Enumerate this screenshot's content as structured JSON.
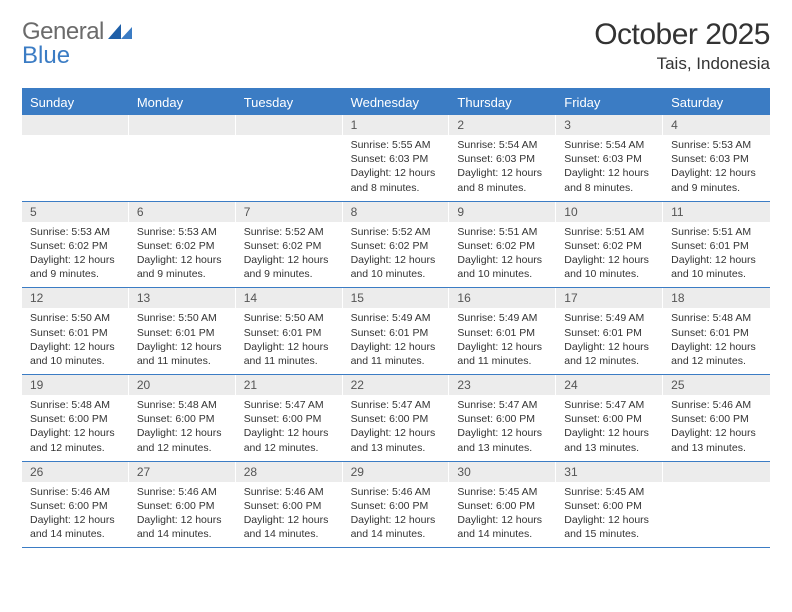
{
  "logo": {
    "part1": "General",
    "part2": "Blue"
  },
  "title": "October 2025",
  "location": "Tais, Indonesia",
  "colors": {
    "accent": "#3b7cc4",
    "daynum_bg": "#ececec",
    "text": "#333333",
    "logo_gray": "#6b6b6b"
  },
  "weekdays": [
    "Sunday",
    "Monday",
    "Tuesday",
    "Wednesday",
    "Thursday",
    "Friday",
    "Saturday"
  ],
  "weeks": [
    [
      {
        "empty": true
      },
      {
        "empty": true
      },
      {
        "empty": true
      },
      {
        "num": "1",
        "sunrise": "Sunrise: 5:55 AM",
        "sunset": "Sunset: 6:03 PM",
        "daylight": "Daylight: 12 hours and 8 minutes."
      },
      {
        "num": "2",
        "sunrise": "Sunrise: 5:54 AM",
        "sunset": "Sunset: 6:03 PM",
        "daylight": "Daylight: 12 hours and 8 minutes."
      },
      {
        "num": "3",
        "sunrise": "Sunrise: 5:54 AM",
        "sunset": "Sunset: 6:03 PM",
        "daylight": "Daylight: 12 hours and 8 minutes."
      },
      {
        "num": "4",
        "sunrise": "Sunrise: 5:53 AM",
        "sunset": "Sunset: 6:03 PM",
        "daylight": "Daylight: 12 hours and 9 minutes."
      }
    ],
    [
      {
        "num": "5",
        "sunrise": "Sunrise: 5:53 AM",
        "sunset": "Sunset: 6:02 PM",
        "daylight": "Daylight: 12 hours and 9 minutes."
      },
      {
        "num": "6",
        "sunrise": "Sunrise: 5:53 AM",
        "sunset": "Sunset: 6:02 PM",
        "daylight": "Daylight: 12 hours and 9 minutes."
      },
      {
        "num": "7",
        "sunrise": "Sunrise: 5:52 AM",
        "sunset": "Sunset: 6:02 PM",
        "daylight": "Daylight: 12 hours and 9 minutes."
      },
      {
        "num": "8",
        "sunrise": "Sunrise: 5:52 AM",
        "sunset": "Sunset: 6:02 PM",
        "daylight": "Daylight: 12 hours and 10 minutes."
      },
      {
        "num": "9",
        "sunrise": "Sunrise: 5:51 AM",
        "sunset": "Sunset: 6:02 PM",
        "daylight": "Daylight: 12 hours and 10 minutes."
      },
      {
        "num": "10",
        "sunrise": "Sunrise: 5:51 AM",
        "sunset": "Sunset: 6:02 PM",
        "daylight": "Daylight: 12 hours and 10 minutes."
      },
      {
        "num": "11",
        "sunrise": "Sunrise: 5:51 AM",
        "sunset": "Sunset: 6:01 PM",
        "daylight": "Daylight: 12 hours and 10 minutes."
      }
    ],
    [
      {
        "num": "12",
        "sunrise": "Sunrise: 5:50 AM",
        "sunset": "Sunset: 6:01 PM",
        "daylight": "Daylight: 12 hours and 10 minutes."
      },
      {
        "num": "13",
        "sunrise": "Sunrise: 5:50 AM",
        "sunset": "Sunset: 6:01 PM",
        "daylight": "Daylight: 12 hours and 11 minutes."
      },
      {
        "num": "14",
        "sunrise": "Sunrise: 5:50 AM",
        "sunset": "Sunset: 6:01 PM",
        "daylight": "Daylight: 12 hours and 11 minutes."
      },
      {
        "num": "15",
        "sunrise": "Sunrise: 5:49 AM",
        "sunset": "Sunset: 6:01 PM",
        "daylight": "Daylight: 12 hours and 11 minutes."
      },
      {
        "num": "16",
        "sunrise": "Sunrise: 5:49 AM",
        "sunset": "Sunset: 6:01 PM",
        "daylight": "Daylight: 12 hours and 11 minutes."
      },
      {
        "num": "17",
        "sunrise": "Sunrise: 5:49 AM",
        "sunset": "Sunset: 6:01 PM",
        "daylight": "Daylight: 12 hours and 12 minutes."
      },
      {
        "num": "18",
        "sunrise": "Sunrise: 5:48 AM",
        "sunset": "Sunset: 6:01 PM",
        "daylight": "Daylight: 12 hours and 12 minutes."
      }
    ],
    [
      {
        "num": "19",
        "sunrise": "Sunrise: 5:48 AM",
        "sunset": "Sunset: 6:00 PM",
        "daylight": "Daylight: 12 hours and 12 minutes."
      },
      {
        "num": "20",
        "sunrise": "Sunrise: 5:48 AM",
        "sunset": "Sunset: 6:00 PM",
        "daylight": "Daylight: 12 hours and 12 minutes."
      },
      {
        "num": "21",
        "sunrise": "Sunrise: 5:47 AM",
        "sunset": "Sunset: 6:00 PM",
        "daylight": "Daylight: 12 hours and 12 minutes."
      },
      {
        "num": "22",
        "sunrise": "Sunrise: 5:47 AM",
        "sunset": "Sunset: 6:00 PM",
        "daylight": "Daylight: 12 hours and 13 minutes."
      },
      {
        "num": "23",
        "sunrise": "Sunrise: 5:47 AM",
        "sunset": "Sunset: 6:00 PM",
        "daylight": "Daylight: 12 hours and 13 minutes."
      },
      {
        "num": "24",
        "sunrise": "Sunrise: 5:47 AM",
        "sunset": "Sunset: 6:00 PM",
        "daylight": "Daylight: 12 hours and 13 minutes."
      },
      {
        "num": "25",
        "sunrise": "Sunrise: 5:46 AM",
        "sunset": "Sunset: 6:00 PM",
        "daylight": "Daylight: 12 hours and 13 minutes."
      }
    ],
    [
      {
        "num": "26",
        "sunrise": "Sunrise: 5:46 AM",
        "sunset": "Sunset: 6:00 PM",
        "daylight": "Daylight: 12 hours and 14 minutes."
      },
      {
        "num": "27",
        "sunrise": "Sunrise: 5:46 AM",
        "sunset": "Sunset: 6:00 PM",
        "daylight": "Daylight: 12 hours and 14 minutes."
      },
      {
        "num": "28",
        "sunrise": "Sunrise: 5:46 AM",
        "sunset": "Sunset: 6:00 PM",
        "daylight": "Daylight: 12 hours and 14 minutes."
      },
      {
        "num": "29",
        "sunrise": "Sunrise: 5:46 AM",
        "sunset": "Sunset: 6:00 PM",
        "daylight": "Daylight: 12 hours and 14 minutes."
      },
      {
        "num": "30",
        "sunrise": "Sunrise: 5:45 AM",
        "sunset": "Sunset: 6:00 PM",
        "daylight": "Daylight: 12 hours and 14 minutes."
      },
      {
        "num": "31",
        "sunrise": "Sunrise: 5:45 AM",
        "sunset": "Sunset: 6:00 PM",
        "daylight": "Daylight: 12 hours and 15 minutes."
      },
      {
        "empty": true
      }
    ]
  ]
}
